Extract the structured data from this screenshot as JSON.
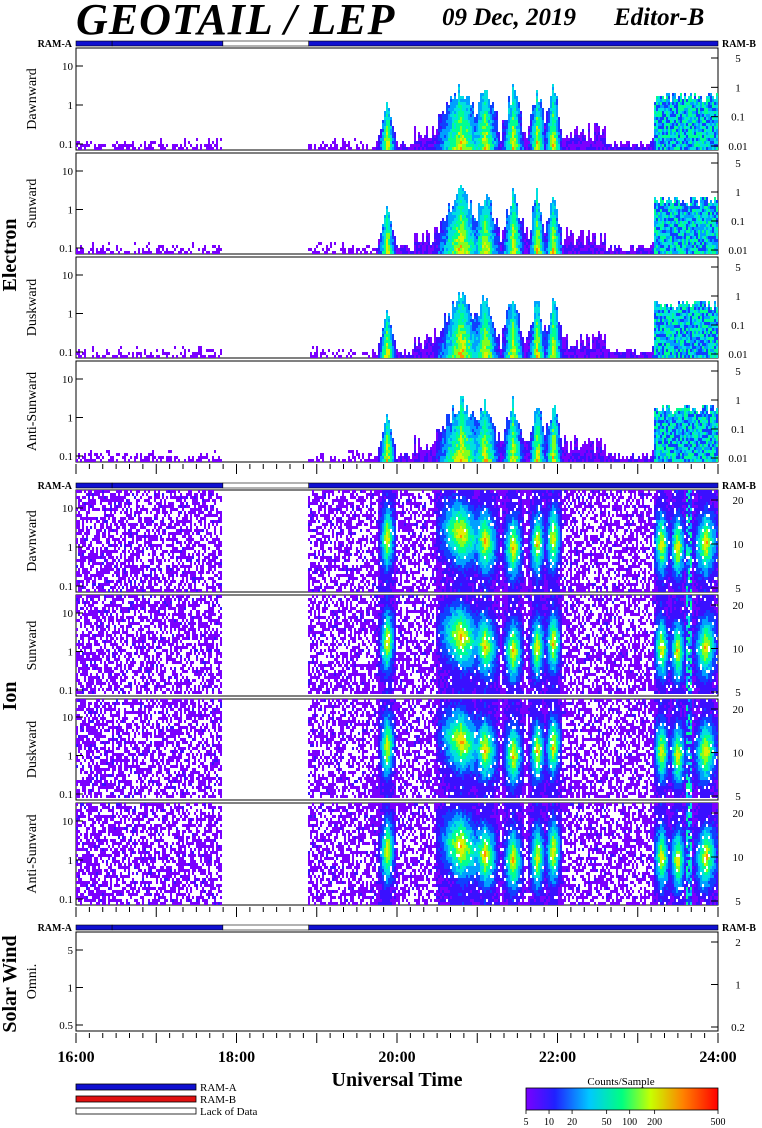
{
  "header": {
    "title": "GEOTAIL / LEP",
    "date": "09 Dec, 2019",
    "editor": "Editor-B"
  },
  "colors": {
    "ram_a": "#1010d0",
    "ram_b": "#e01010",
    "lack_of_data": "#ffffff"
  },
  "legend": {
    "ram_a": "RAM-A",
    "ram_b": "RAM-B",
    "lack": "Lack of Data"
  },
  "colorbar": {
    "title": "Counts/Sample",
    "ticks": [
      "5",
      "10",
      "20",
      "50",
      "100",
      "200",
      "500"
    ]
  },
  "sections": {
    "electron": "Electron",
    "ion": "Ion",
    "solar_wind": "Solar Wind"
  },
  "ram_labels": {
    "left": "RAM-A",
    "right": "RAM-B"
  },
  "chart_data": {
    "type": "heatmap",
    "x_axis": {
      "label": "Universal Time",
      "ticks": [
        "16:00",
        "18:00",
        "20:00",
        "22:00",
        "24:00"
      ],
      "range_hours": [
        16,
        24
      ]
    },
    "ram_mode_segments": [
      {
        "start": 16.0,
        "end": 16.45,
        "mode": "RAM-A"
      },
      {
        "start": 16.45,
        "end": 17.83,
        "mode": "RAM-A"
      },
      {
        "start": 17.83,
        "end": 18.9,
        "mode": "Lack of Data"
      },
      {
        "start": 18.9,
        "end": 24.0,
        "mode": "RAM-A"
      }
    ],
    "data_gap_hours": [
      17.83,
      18.9
    ],
    "bright_intervals": [
      {
        "center": 19.88,
        "width": 0.12
      },
      {
        "center": 20.8,
        "width": 0.35
      },
      {
        "center": 21.1,
        "width": 0.2
      },
      {
        "center": 21.45,
        "width": 0.15
      },
      {
        "center": 21.75,
        "width": 0.12
      },
      {
        "center": 21.95,
        "width": 0.12
      },
      {
        "center": 23.3,
        "width": 0.12
      },
      {
        "center": 23.5,
        "width": 0.12
      },
      {
        "center": 23.85,
        "width": 0.18
      }
    ],
    "panels": [
      {
        "group": "Electron",
        "label": "Dawnward",
        "left_ticks": [
          "0.1",
          "1",
          "10"
        ],
        "right_ticks": [
          "0.01",
          "0.1",
          "1",
          "5"
        ]
      },
      {
        "group": "Electron",
        "label": "Sunward",
        "left_ticks": [
          "0.1",
          "1",
          "10"
        ],
        "right_ticks": [
          "0.01",
          "0.1",
          "1",
          "5"
        ]
      },
      {
        "group": "Electron",
        "label": "Duskward",
        "left_ticks": [
          "0.1",
          "1",
          "10"
        ],
        "right_ticks": [
          "0.01",
          "0.1",
          "1",
          "5"
        ]
      },
      {
        "group": "Electron",
        "label": "Anti-Sunward",
        "left_ticks": [
          "0.1",
          "1",
          "10"
        ],
        "right_ticks": [
          "0.01",
          "0.1",
          "1",
          "5"
        ]
      },
      {
        "group": "Ion",
        "label": "Dawnward",
        "left_ticks": [
          "0.1",
          "1",
          "10"
        ],
        "right_ticks": [
          "5",
          "10",
          "20"
        ]
      },
      {
        "group": "Ion",
        "label": "Sunward",
        "left_ticks": [
          "0.1",
          "1",
          "10"
        ],
        "right_ticks": [
          "5",
          "10",
          "20"
        ]
      },
      {
        "group": "Ion",
        "label": "Duskward",
        "left_ticks": [
          "0.1",
          "1",
          "10"
        ],
        "right_ticks": [
          "5",
          "10",
          "20"
        ]
      },
      {
        "group": "Ion",
        "label": "Anti-Sunward",
        "left_ticks": [
          "0.1",
          "1",
          "10"
        ],
        "right_ticks": [
          "5",
          "10",
          "20"
        ]
      },
      {
        "group": "Solar Wind",
        "label": "Omni.",
        "left_ticks": [
          "0.5",
          "1",
          "5"
        ],
        "right_ticks": [
          "0.2",
          "1",
          "2"
        ]
      }
    ]
  }
}
